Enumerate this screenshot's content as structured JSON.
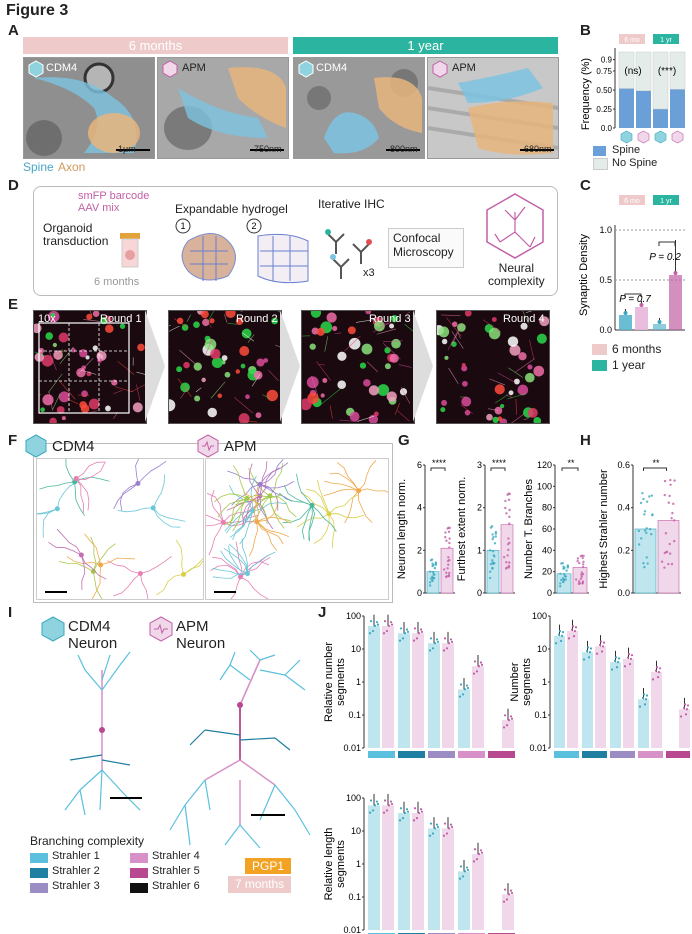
{
  "figure_title": "Figure 3",
  "panels": {
    "A": "A",
    "B": "B",
    "C": "C",
    "D": "D",
    "E": "E",
    "F": "F",
    "G": "G",
    "H": "H",
    "I": "I",
    "J": "J"
  },
  "panelA": {
    "band_6m": "6 months",
    "band_1y": "1 year",
    "images": [
      {
        "label": "CDM4",
        "scale": "1μm"
      },
      {
        "label": "APM",
        "scale": "750nm"
      },
      {
        "label": "CDM4",
        "scale": "800nm"
      },
      {
        "label": "APM",
        "scale": "680nm"
      }
    ],
    "legend_spine": "Spine",
    "legend_axon": "Axon"
  },
  "panelB": {
    "tag_6m": "6 mo",
    "tag_1y": "1 yr",
    "ns": "(ns)",
    "sig": "(***)",
    "legend_spine": "Spine",
    "legend_nospine": "No Spine"
  },
  "panelC": {
    "tag_6m": "6 mo",
    "tag_1y": "1 yr",
    "p1": "P = 0.7",
    "p2": "P = 0.2",
    "legend_6m": "6 months",
    "legend_1y": "1 year"
  },
  "panelD": {
    "barcode": "smFP barcode\nAAV mix",
    "organoid": "Organoid\ntransduction",
    "hydrogel": "Expandable hydrogel",
    "iterative": "Iterative IHC",
    "confocal": "Confocal\nMicroscopy",
    "x3": "x3",
    "age": "6 months",
    "neural": "Neural\ncomplexity",
    "step1": "1",
    "step2": "2"
  },
  "panelE": {
    "mag": "10x",
    "rounds": [
      "Round 1",
      "Round 2",
      "Round 3",
      "Round 4"
    ]
  },
  "panelF": {
    "cdm4": "CDM4",
    "apm": "APM"
  },
  "panelI": {
    "cdm4": "CDM4\nNeuron",
    "apm": "APM\nNeuron",
    "branching_title": "Branching complexity",
    "strahler": [
      "Strahler 1",
      "Strahler 2",
      "Strahler 3",
      "Strahler 4",
      "Strahler 5",
      "Strahler 6"
    ],
    "strahler_colors": [
      "#5bc0de",
      "#1f7fa0",
      "#9b8cc4",
      "#d891c8",
      "#b8488f",
      "#111111"
    ],
    "pgp1": "PGP1",
    "age": "7 months"
  },
  "colors": {
    "cdm4": "#8fd3df",
    "apm": "#e6b6da",
    "cdm4_dark": "#3aa7c0",
    "apm_dark": "#c25fa6",
    "teal": "#2bb5a0",
    "pink": "#efcaca",
    "spine": "#6a9fd8"
  },
  "chart_data": [
    {
      "id": "B",
      "type": "bar",
      "ylabel": "Frequency (%)",
      "ylim": [
        0,
        1
      ],
      "yticks": [
        "0.0",
        "0.25",
        "0.50",
        "0.75",
        "0.9"
      ],
      "categories": [
        "6mo CDM4",
        "6mo APM",
        "1yr CDM4",
        "1yr APM"
      ],
      "series": [
        {
          "name": "Spine",
          "values": [
            0.52,
            0.49,
            0.25,
            0.51
          ]
        },
        {
          "name": "No Spine",
          "values": [
            0.48,
            0.51,
            0.75,
            0.49
          ]
        }
      ]
    },
    {
      "id": "C",
      "type": "bar",
      "ylabel": "Synaptic Density",
      "ylim": [
        0,
        1.1
      ],
      "yticks": [
        "0.0",
        "0.5",
        "1.0"
      ],
      "categories": [
        "6mo CDM4",
        "6mo APM",
        "1yr CDM4",
        "1yr APM"
      ],
      "values": [
        0.15,
        0.23,
        0.06,
        0.55
      ]
    },
    {
      "id": "G1",
      "type": "bar",
      "ylabel": "Neuron length norm.",
      "yticks": [
        "0",
        "2",
        "4",
        "6"
      ],
      "ylim": [
        0,
        6
      ],
      "categories": [
        "CDM4",
        "APM"
      ],
      "values": [
        1.0,
        2.1
      ],
      "sig": "****"
    },
    {
      "id": "G2",
      "type": "bar",
      "ylabel": "Furthest extent norm.",
      "yticks": [
        "0",
        "1",
        "2",
        "3"
      ],
      "ylim": [
        0,
        3
      ],
      "categories": [
        "CDM4",
        "APM"
      ],
      "values": [
        1.0,
        1.6
      ],
      "sig": "****"
    },
    {
      "id": "G3",
      "type": "bar",
      "ylabel": "Number T. Branches",
      "yticks": [
        "0",
        "20",
        "40",
        "60",
        "80",
        "100",
        "120"
      ],
      "ylim": [
        0,
        120
      ],
      "categories": [
        "CDM4",
        "APM"
      ],
      "values": [
        18,
        24
      ],
      "sig": "**"
    },
    {
      "id": "H",
      "type": "bar",
      "ylabel": "Highest Strahler number",
      "yticks": [
        "0.0",
        "0.2",
        "0.4",
        "0.6"
      ],
      "ylim": [
        0,
        0.6
      ],
      "categories": [
        "CDM4",
        "APM"
      ],
      "values": [
        0.3,
        0.34
      ],
      "sig": "**"
    },
    {
      "id": "J1",
      "type": "bar",
      "ylabel": "Relative number\nsegments",
      "scale": "log",
      "yticks": [
        "100",
        "10",
        "1",
        "0.1",
        "0.01"
      ],
      "categories": [
        "S1",
        "S2",
        "S3",
        "S4",
        "S5"
      ],
      "series": [
        {
          "name": "CDM4",
          "values": [
            50,
            30,
            15,
            0.6,
            null
          ]
        },
        {
          "name": "APM",
          "values": [
            50,
            30,
            15,
            3,
            0.07
          ]
        }
      ]
    },
    {
      "id": "J2",
      "type": "bar",
      "ylabel": "Number\nsegments",
      "scale": "log",
      "yticks": [
        "100",
        "10",
        "1",
        "0.1",
        "0.01"
      ],
      "categories": [
        "S1",
        "S2",
        "S3",
        "S4",
        "S5"
      ],
      "series": [
        {
          "name": "CDM4",
          "values": [
            25,
            8,
            4,
            0.3,
            null
          ]
        },
        {
          "name": "APM",
          "values": [
            35,
            12,
            5,
            2,
            0.15
          ]
        }
      ]
    },
    {
      "id": "J3",
      "type": "bar",
      "ylabel": "Relative length\nsegments",
      "scale": "log",
      "yticks": [
        "100",
        "10",
        "1",
        "0.1",
        "0.01"
      ],
      "categories": [
        "S1",
        "S2",
        "S3",
        "S4",
        "S5"
      ],
      "series": [
        {
          "name": "CDM4",
          "values": [
            60,
            35,
            12,
            0.6,
            null
          ]
        },
        {
          "name": "APM",
          "values": [
            60,
            35,
            12,
            2,
            0.12
          ]
        }
      ]
    }
  ]
}
